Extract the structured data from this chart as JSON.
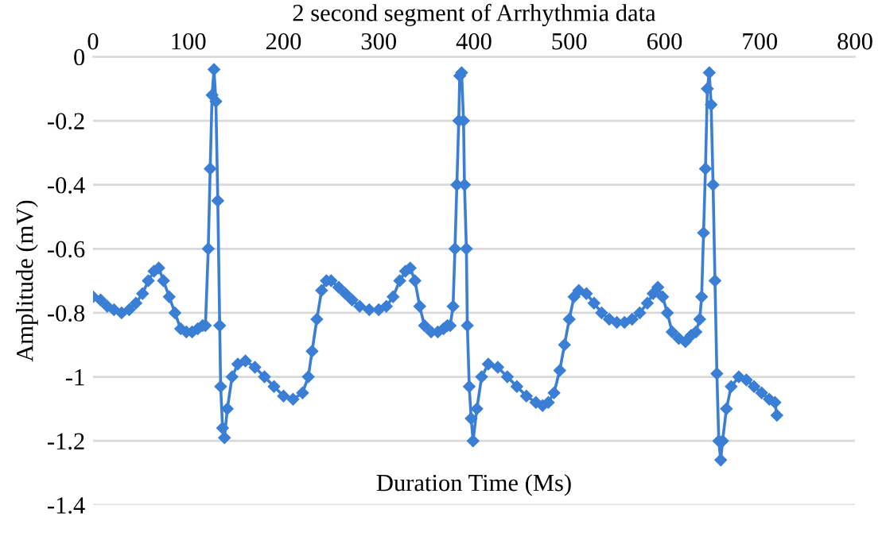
{
  "chart_data": {
    "type": "line",
    "title": "2 second segment of Arrhythmia data",
    "xlabel": "Duration Time (Ms)",
    "ylabel": "Amplitude (mV)",
    "xlim": [
      0,
      800
    ],
    "xticks": [
      0,
      100,
      200,
      300,
      400,
      500,
      600,
      700,
      800
    ],
    "ylim": [
      -1.4,
      0
    ],
    "yticks": [
      -1.4,
      -1.2,
      -1,
      -0.8,
      -0.6,
      -0.4,
      -0.2,
      0
    ],
    "grid": "y",
    "marker": "diamond",
    "line_style": "solid",
    "series": [
      {
        "color": "#3a7fd5",
        "x": [
          0,
          8,
          15,
          22,
          30,
          38,
          45,
          52,
          58,
          64,
          69,
          74,
          80,
          86,
          92,
          98,
          104,
          110,
          115,
          118,
          121,
          123,
          125,
          127,
          129,
          131,
          133,
          134,
          136,
          138,
          141,
          146,
          152,
          160,
          170,
          180,
          190,
          200,
          210,
          220,
          226,
          230,
          235,
          240,
          245,
          250,
          258,
          265,
          272,
          280,
          290,
          300,
          308,
          315,
          322,
          328,
          333,
          338,
          343,
          348,
          355,
          362,
          368,
          372,
          375,
          378,
          380,
          382,
          384,
          385,
          387,
          389,
          390,
          392,
          393,
          395,
          397,
          399,
          403,
          408,
          415,
          425,
          435,
          445,
          455,
          465,
          472,
          478,
          484,
          490,
          495,
          500,
          505,
          510,
          518,
          526,
          534,
          542,
          550,
          558,
          566,
          574,
          582,
          588,
          593,
          598,
          603,
          608,
          615,
          622,
          628,
          633,
          637,
          639,
          641,
          643,
          645,
          647,
          649,
          651,
          653,
          655,
          657,
          659,
          661,
          665,
          670,
          678,
          686,
          694,
          702,
          710,
          716,
          718
        ],
        "values": [
          -0.75,
          -0.76,
          -0.78,
          -0.79,
          -0.8,
          -0.79,
          -0.77,
          -0.74,
          -0.7,
          -0.67,
          -0.66,
          -0.7,
          -0.75,
          -0.8,
          -0.85,
          -0.86,
          -0.86,
          -0.85,
          -0.84,
          -0.84,
          -0.6,
          -0.35,
          -0.12,
          -0.04,
          -0.14,
          -0.45,
          -0.84,
          -1.03,
          -1.16,
          -1.19,
          -1.1,
          -1.0,
          -0.96,
          -0.95,
          -0.97,
          -1.0,
          -1.03,
          -1.06,
          -1.07,
          -1.05,
          -1.0,
          -0.92,
          -0.82,
          -0.73,
          -0.7,
          -0.7,
          -0.72,
          -0.74,
          -0.76,
          -0.78,
          -0.79,
          -0.79,
          -0.78,
          -0.75,
          -0.7,
          -0.67,
          -0.66,
          -0.7,
          -0.78,
          -0.84,
          -0.86,
          -0.86,
          -0.85,
          -0.84,
          -0.84,
          -0.78,
          -0.6,
          -0.4,
          -0.2,
          -0.06,
          -0.05,
          -0.2,
          -0.4,
          -0.6,
          -0.84,
          -1.03,
          -1.13,
          -1.2,
          -1.1,
          -1.0,
          -0.96,
          -0.97,
          -1.0,
          -1.03,
          -1.06,
          -1.08,
          -1.09,
          -1.08,
          -1.05,
          -0.98,
          -0.9,
          -0.82,
          -0.75,
          -0.73,
          -0.74,
          -0.77,
          -0.8,
          -0.82,
          -0.83,
          -0.83,
          -0.82,
          -0.8,
          -0.77,
          -0.74,
          -0.72,
          -0.75,
          -0.8,
          -0.86,
          -0.88,
          -0.89,
          -0.87,
          -0.86,
          -0.82,
          -0.75,
          -0.55,
          -0.35,
          -0.1,
          -0.05,
          -0.15,
          -0.4,
          -0.7,
          -0.99,
          -1.2,
          -1.26,
          -1.2,
          -1.1,
          -1.03,
          -1.0,
          -1.01,
          -1.03,
          -1.05,
          -1.07,
          -1.08,
          -1.12
        ]
      }
    ]
  }
}
